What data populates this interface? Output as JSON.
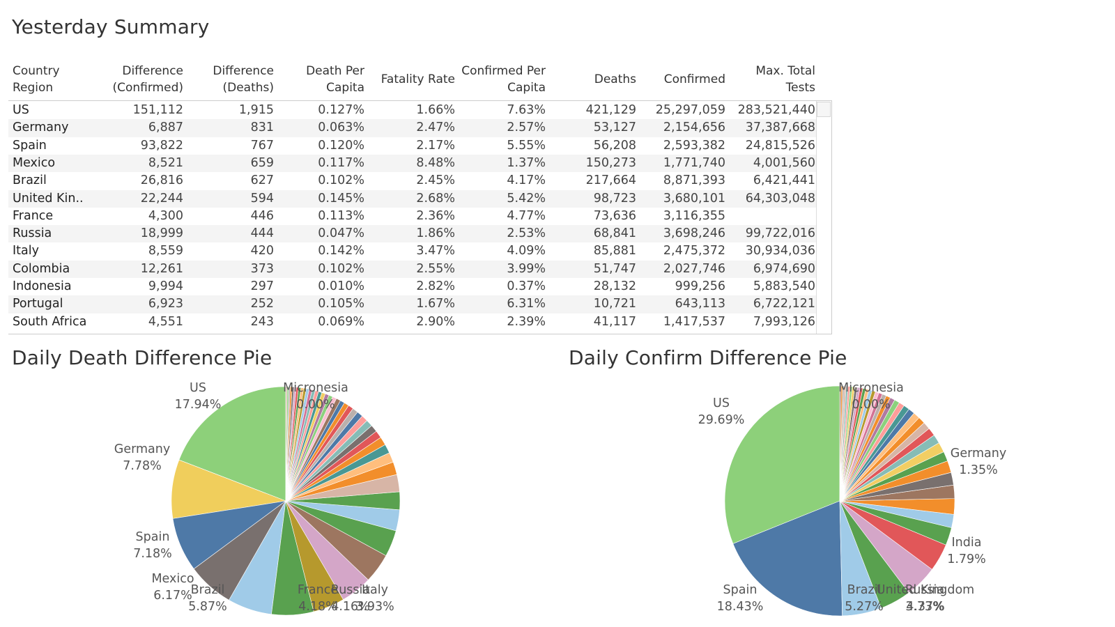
{
  "summary": {
    "title": "Yesterday Summary",
    "columns": [
      {
        "line1": "Country",
        "line2": "Region"
      },
      {
        "line1": "Difference",
        "line2": "(Confirmed)"
      },
      {
        "line1": "Difference",
        "line2": "(Deaths)"
      },
      {
        "line1": "Death Per",
        "line2": "Capita"
      },
      {
        "line1": "Fatality Rate",
        "line2": ""
      },
      {
        "line1": "Confirmed Per",
        "line2": "Capita"
      },
      {
        "line1": "Deaths",
        "line2": ""
      },
      {
        "line1": "Confirmed",
        "line2": ""
      },
      {
        "line1": "Max. Total",
        "line2": "Tests"
      }
    ],
    "rows": [
      [
        "US",
        "151,112",
        "1,915",
        "0.127%",
        "1.66%",
        "7.63%",
        "421,129",
        "25,297,059",
        "283,521,440"
      ],
      [
        "Germany",
        "6,887",
        "831",
        "0.063%",
        "2.47%",
        "2.57%",
        "53,127",
        "2,154,656",
        "37,387,668"
      ],
      [
        "Spain",
        "93,822",
        "767",
        "0.120%",
        "2.17%",
        "5.55%",
        "56,208",
        "2,593,382",
        "24,815,526"
      ],
      [
        "Mexico",
        "8,521",
        "659",
        "0.117%",
        "8.48%",
        "1.37%",
        "150,273",
        "1,771,740",
        "4,001,560"
      ],
      [
        "Brazil",
        "26,816",
        "627",
        "0.102%",
        "2.45%",
        "4.17%",
        "217,664",
        "8,871,393",
        "6,421,441"
      ],
      [
        "United Kin..",
        "22,244",
        "594",
        "0.145%",
        "2.68%",
        "5.42%",
        "98,723",
        "3,680,101",
        "64,303,048"
      ],
      [
        "France",
        "4,300",
        "446",
        "0.113%",
        "2.36%",
        "4.77%",
        "73,636",
        "3,116,355",
        ""
      ],
      [
        "Russia",
        "18,999",
        "444",
        "0.047%",
        "1.86%",
        "2.53%",
        "68,841",
        "3,698,246",
        "99,722,016"
      ],
      [
        "Italy",
        "8,559",
        "420",
        "0.142%",
        "3.47%",
        "4.09%",
        "85,881",
        "2,475,372",
        "30,934,036"
      ],
      [
        "Colombia",
        "12,261",
        "373",
        "0.102%",
        "2.55%",
        "3.99%",
        "51,747",
        "2,027,746",
        "6,974,690"
      ],
      [
        "Indonesia",
        "9,994",
        "297",
        "0.010%",
        "2.82%",
        "0.37%",
        "28,132",
        "999,256",
        "5,883,540"
      ],
      [
        "Portugal",
        "6,923",
        "252",
        "0.105%",
        "1.67%",
        "6.31%",
        "10,721",
        "643,113",
        "6,722,121"
      ],
      [
        "South Africa",
        "4,551",
        "243",
        "0.069%",
        "2.90%",
        "2.39%",
        "41,117",
        "1,417,537",
        "7,993,126"
      ]
    ]
  },
  "chart_data": [
    {
      "type": "pie",
      "title": "Daily Death Difference Pie",
      "slices": [
        {
          "label": "US",
          "pct": 17.94,
          "display": "17.94%",
          "color": "#8dd07a",
          "labeled": true
        },
        {
          "label": "Germany",
          "pct": 7.78,
          "display": "7.78%",
          "color": "#f0ce5c",
          "labeled": true
        },
        {
          "label": "Spain",
          "pct": 7.18,
          "display": "7.18%",
          "color": "#4e79a7",
          "labeled": true
        },
        {
          "label": "Mexico",
          "pct": 6.17,
          "display": "6.17%",
          "color": "#79706e",
          "labeled": true
        },
        {
          "label": "Brazil",
          "pct": 5.87,
          "display": "5.87%",
          "color": "#a0cbe8",
          "labeled": true
        },
        {
          "label": "",
          "pct": 5.56,
          "display": "",
          "color": "#59a14f",
          "labeled": false
        },
        {
          "label": "France",
          "pct": 4.18,
          "display": "4.18%",
          "color": "#b6992d",
          "labeled": true
        },
        {
          "label": "Russia",
          "pct": 4.16,
          "display": "4.16%",
          "color": "#d4a6c8",
          "labeled": true
        },
        {
          "label": "Italy",
          "pct": 3.93,
          "display": "3.93%",
          "color": "#9d7660",
          "labeled": true
        },
        {
          "label": "",
          "pct": 3.5,
          "display": "",
          "color": "#59a14f",
          "labeled": false
        },
        {
          "label": "",
          "pct": 2.78,
          "display": "",
          "color": "#a0cbe8",
          "labeled": false
        },
        {
          "label": "",
          "pct": 2.36,
          "display": "",
          "color": "#59a14f",
          "labeled": false
        },
        {
          "label": "",
          "pct": 2.28,
          "display": "",
          "color": "#d7b5a6",
          "labeled": false
        },
        {
          "label": "",
          "pct": 1.7,
          "display": "",
          "color": "#f28e2b",
          "labeled": false
        },
        {
          "label": "",
          "pct": 1.3,
          "display": "",
          "color": "#ffbe7d",
          "labeled": false
        },
        {
          "label": "",
          "pct": 1.2,
          "display": "",
          "color": "#499894",
          "labeled": false
        },
        {
          "label": "",
          "pct": 1.1,
          "display": "",
          "color": "#f28e2b",
          "labeled": false
        },
        {
          "label": "",
          "pct": 1.0,
          "display": "",
          "color": "#e15759",
          "labeled": false
        },
        {
          "label": "",
          "pct": 0.95,
          "display": "",
          "color": "#79706e",
          "labeled": false
        },
        {
          "label": "",
          "pct": 0.9,
          "display": "",
          "color": "#86bcb6",
          "labeled": false
        },
        {
          "label": "",
          "pct": 0.85,
          "display": "",
          "color": "#ff9d9a",
          "labeled": false
        },
        {
          "label": "",
          "pct": 0.8,
          "display": "",
          "color": "#4e79a7",
          "labeled": false
        },
        {
          "label": "",
          "pct": 0.75,
          "display": "",
          "color": "#bab0ac",
          "labeled": false
        },
        {
          "label": "",
          "pct": 0.7,
          "display": "",
          "color": "#e15759",
          "labeled": false
        },
        {
          "label": "",
          "pct": 0.65,
          "display": "",
          "color": "#f28e2b",
          "labeled": false
        },
        {
          "label": "",
          "pct": 0.6,
          "display": "",
          "color": "#4e79a7",
          "labeled": false
        },
        {
          "label": "",
          "pct": 0.58,
          "display": "",
          "color": "#9d7660",
          "labeled": false
        },
        {
          "label": "",
          "pct": 0.55,
          "display": "",
          "color": "#fabfd2",
          "labeled": false
        },
        {
          "label": "",
          "pct": 0.52,
          "display": "",
          "color": "#8cd17d",
          "labeled": false
        },
        {
          "label": "",
          "pct": 0.5,
          "display": "",
          "color": "#b07aa1",
          "labeled": false
        },
        {
          "label": "",
          "pct": 0.48,
          "display": "",
          "color": "#f1ce63",
          "labeled": false
        },
        {
          "label": "",
          "pct": 0.46,
          "display": "",
          "color": "#499894",
          "labeled": false
        },
        {
          "label": "",
          "pct": 0.44,
          "display": "",
          "color": "#ff9d9a",
          "labeled": false
        },
        {
          "label": "",
          "pct": 0.42,
          "display": "",
          "color": "#86bcb6",
          "labeled": false
        },
        {
          "label": "",
          "pct": 0.4,
          "display": "",
          "color": "#d37295",
          "labeled": false
        },
        {
          "label": "",
          "pct": 0.38,
          "display": "",
          "color": "#a0cbe8",
          "labeled": false
        },
        {
          "label": "",
          "pct": 0.36,
          "display": "",
          "color": "#b6992d",
          "labeled": false
        },
        {
          "label": "",
          "pct": 0.34,
          "display": "",
          "color": "#ffbe7d",
          "labeled": false
        },
        {
          "label": "",
          "pct": 0.32,
          "display": "",
          "color": "#59a14f",
          "labeled": false
        },
        {
          "label": "",
          "pct": 0.3,
          "display": "",
          "color": "#e15759",
          "labeled": false
        },
        {
          "label": "",
          "pct": 0.28,
          "display": "",
          "color": "#d4a6c8",
          "labeled": false
        },
        {
          "label": "",
          "pct": 0.26,
          "display": "",
          "color": "#79706e",
          "labeled": false
        },
        {
          "label": "",
          "pct": 0.24,
          "display": "",
          "color": "#f28e2b",
          "labeled": false
        },
        {
          "label": "",
          "pct": 0.22,
          "display": "",
          "color": "#bab0ac",
          "labeled": false
        },
        {
          "label": "",
          "pct": 0.2,
          "display": "",
          "color": "#8cd17d",
          "labeled": false
        },
        {
          "label": "",
          "pct": 0.18,
          "display": "",
          "color": "#d7b5a6",
          "labeled": false
        },
        {
          "label": "Micronesia",
          "pct": 0.0,
          "display": "0.00%",
          "color": "#bab0ac",
          "labeled": true
        }
      ]
    },
    {
      "type": "pie",
      "title": "Daily Confirm Difference Pie",
      "slices": [
        {
          "label": "US",
          "pct": 29.69,
          "display": "29.69%",
          "color": "#8dd07a",
          "labeled": true
        },
        {
          "label": "Spain",
          "pct": 18.43,
          "display": "18.43%",
          "color": "#4e79a7",
          "labeled": true
        },
        {
          "label": "Brazil",
          "pct": 5.27,
          "display": "5.27%",
          "color": "#a0cbe8",
          "labeled": true
        },
        {
          "label": "",
          "pct": 4.2,
          "display": "",
          "color": "#59a14f",
          "labeled": false
        },
        {
          "label": "United Kingdom",
          "pct": 4.37,
          "display": "4.37%",
          "color": "#d4a6c8",
          "labeled": true
        },
        {
          "label": "Russia",
          "pct": 3.73,
          "display": "3.73%",
          "color": "#e15759",
          "labeled": true
        },
        {
          "label": "",
          "pct": 2.4,
          "display": "",
          "color": "#59a14f",
          "labeled": false
        },
        {
          "label": "India",
          "pct": 1.79,
          "display": "1.79%",
          "color": "#a0cbe8",
          "labeled": true
        },
        {
          "label": "",
          "pct": 2.1,
          "display": "",
          "color": "#f28e2b",
          "labeled": false
        },
        {
          "label": "",
          "pct": 1.8,
          "display": "",
          "color": "#9d7660",
          "labeled": false
        },
        {
          "label": "",
          "pct": 1.7,
          "display": "",
          "color": "#79706e",
          "labeled": false
        },
        {
          "label": "",
          "pct": 1.6,
          "display": "",
          "color": "#f28e2b",
          "labeled": false
        },
        {
          "label": "",
          "pct": 1.3,
          "display": "",
          "color": "#59a14f",
          "labeled": false
        },
        {
          "label": "Germany",
          "pct": 1.35,
          "display": "1.35%",
          "color": "#f1ce63",
          "labeled": true
        },
        {
          "label": "",
          "pct": 1.2,
          "display": "",
          "color": "#86bcb6",
          "labeled": false
        },
        {
          "label": "",
          "pct": 1.1,
          "display": "",
          "color": "#e15759",
          "labeled": false
        },
        {
          "label": "",
          "pct": 1.0,
          "display": "",
          "color": "#d7b5a6",
          "labeled": false
        },
        {
          "label": "",
          "pct": 0.95,
          "display": "",
          "color": "#f28e2b",
          "labeled": false
        },
        {
          "label": "",
          "pct": 0.9,
          "display": "",
          "color": "#ffbe7d",
          "labeled": false
        },
        {
          "label": "",
          "pct": 0.85,
          "display": "",
          "color": "#4e79a7",
          "labeled": false
        },
        {
          "label": "",
          "pct": 0.8,
          "display": "",
          "color": "#499894",
          "labeled": false
        },
        {
          "label": "",
          "pct": 0.75,
          "display": "",
          "color": "#ff9d9a",
          "labeled": false
        },
        {
          "label": "",
          "pct": 0.7,
          "display": "",
          "color": "#8cd17d",
          "labeled": false
        },
        {
          "label": "",
          "pct": 0.65,
          "display": "",
          "color": "#b07aa1",
          "labeled": false
        },
        {
          "label": "",
          "pct": 0.6,
          "display": "",
          "color": "#f28e2b",
          "labeled": false
        },
        {
          "label": "",
          "pct": 0.55,
          "display": "",
          "color": "#bab0ac",
          "labeled": false
        },
        {
          "label": "",
          "pct": 0.5,
          "display": "",
          "color": "#d37295",
          "labeled": false
        },
        {
          "label": "",
          "pct": 0.48,
          "display": "",
          "color": "#fabfd2",
          "labeled": false
        },
        {
          "label": "",
          "pct": 0.46,
          "display": "",
          "color": "#b6992d",
          "labeled": false
        },
        {
          "label": "",
          "pct": 0.44,
          "display": "",
          "color": "#a0cbe8",
          "labeled": false
        },
        {
          "label": "",
          "pct": 0.42,
          "display": "",
          "color": "#ffbe7d",
          "labeled": false
        },
        {
          "label": "",
          "pct": 0.4,
          "display": "",
          "color": "#59a14f",
          "labeled": false
        },
        {
          "label": "",
          "pct": 0.38,
          "display": "",
          "color": "#e15759",
          "labeled": false
        },
        {
          "label": "",
          "pct": 0.36,
          "display": "",
          "color": "#d4a6c8",
          "labeled": false
        },
        {
          "label": "",
          "pct": 0.34,
          "display": "",
          "color": "#79706e",
          "labeled": false
        },
        {
          "label": "",
          "pct": 0.32,
          "display": "",
          "color": "#f1ce63",
          "labeled": false
        },
        {
          "label": "",
          "pct": 0.3,
          "display": "",
          "color": "#8cd17d",
          "labeled": false
        },
        {
          "label": "",
          "pct": 0.28,
          "display": "",
          "color": "#ff9d9a",
          "labeled": false
        },
        {
          "label": "",
          "pct": 0.26,
          "display": "",
          "color": "#86bcb6",
          "labeled": false
        },
        {
          "label": "",
          "pct": 0.24,
          "display": "",
          "color": "#d7b5a6",
          "labeled": false
        },
        {
          "label": "",
          "pct": 0.22,
          "display": "",
          "color": "#bab0ac",
          "labeled": false
        },
        {
          "label": "",
          "pct": 0.2,
          "display": "",
          "color": "#f28e2b",
          "labeled": false
        },
        {
          "label": "",
          "pct": 0.18,
          "display": "",
          "color": "#9d7660",
          "labeled": false
        },
        {
          "label": "Micronesia",
          "pct": 0.0,
          "display": "0.00%",
          "color": "#bab0ac",
          "labeled": true
        }
      ]
    }
  ]
}
